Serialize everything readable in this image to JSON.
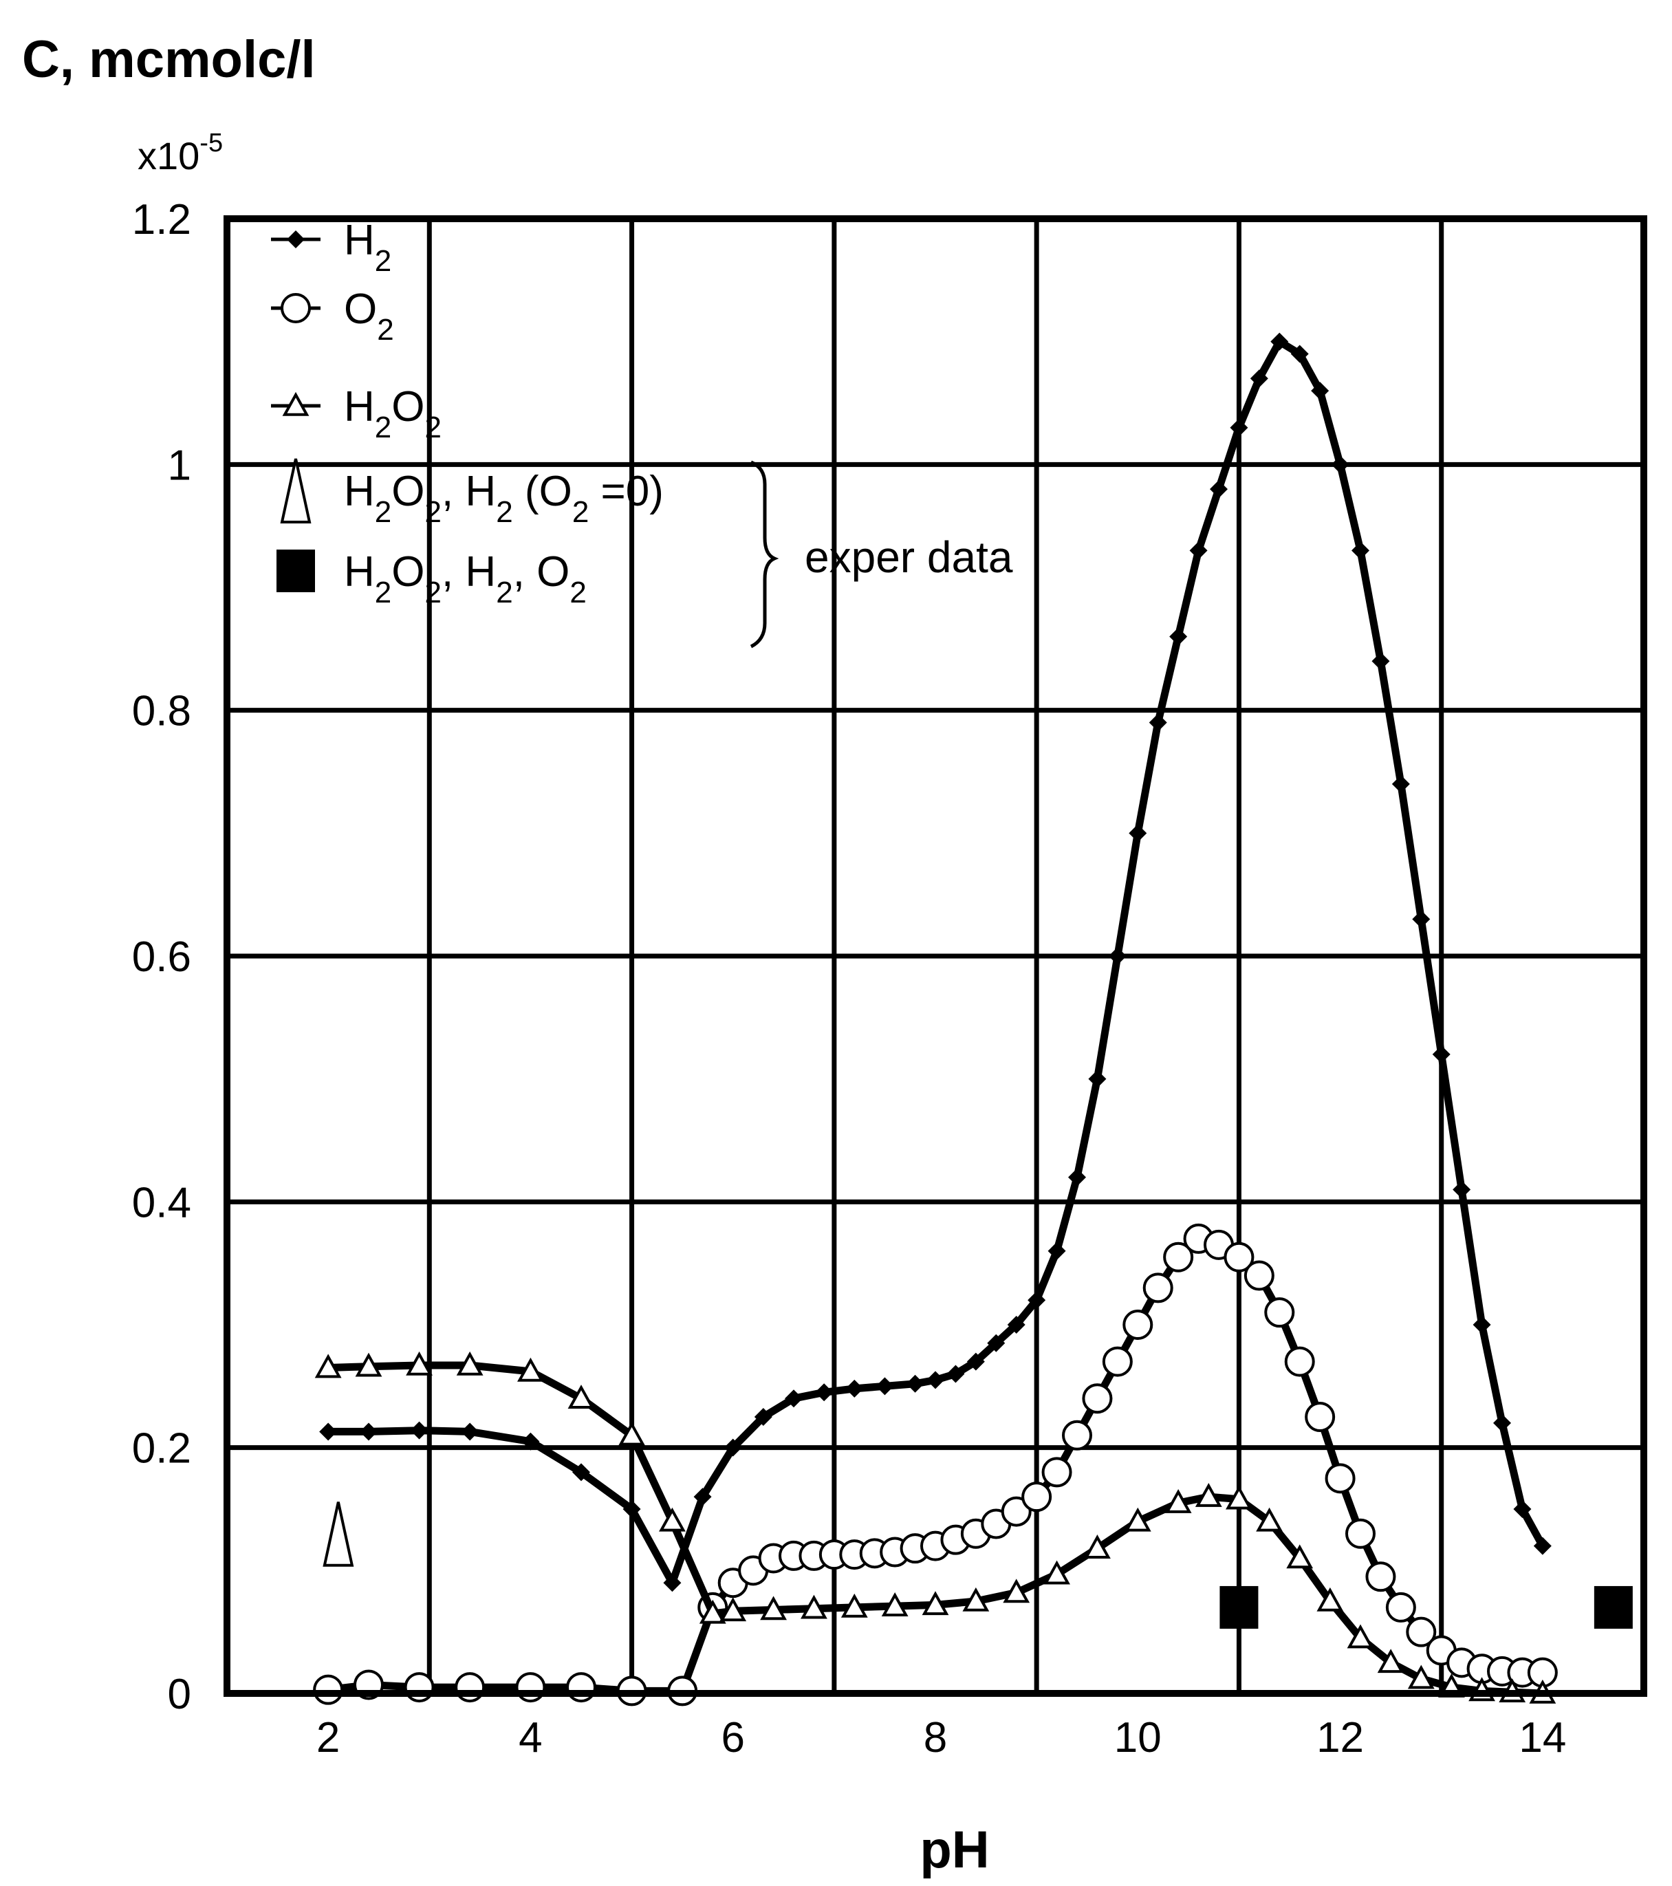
{
  "chart_data": {
    "type": "line",
    "ylabel": "C, mcmolc/l",
    "y_multiplier": "x10",
    "y_multiplier_exp": "-5",
    "xlabel": "pH",
    "xlim": [
      1,
      15
    ],
    "ylim": [
      0,
      1.2
    ],
    "xticks": [
      2,
      4,
      6,
      8,
      10,
      12,
      14
    ],
    "yticks": [
      0,
      0.2,
      0.4,
      0.6,
      0.8,
      1,
      1.2
    ],
    "x_gridlines": [
      3,
      5,
      7,
      9,
      11,
      13
    ],
    "grid": true,
    "legend_position": "top-left",
    "series": [
      {
        "name": "H2",
        "legend": {
          "main": "H",
          "sub": "2"
        },
        "marker": "diamond",
        "x": [
          2.0,
          2.4,
          2.9,
          3.4,
          4.0,
          4.5,
          5.0,
          5.4,
          5.7,
          6.0,
          6.3,
          6.6,
          6.9,
          7.2,
          7.5,
          7.8,
          8.0,
          8.2,
          8.4,
          8.6,
          8.8,
          9.0,
          9.2,
          9.4,
          9.6,
          9.8,
          10.0,
          10.2,
          10.4,
          10.6,
          10.8,
          11.0,
          11.2,
          11.4,
          11.6,
          11.8,
          12.0,
          12.2,
          12.4,
          12.6,
          12.8,
          13.0,
          13.2,
          13.4,
          13.6,
          13.8,
          14.0
        ],
        "y": [
          0.213,
          0.213,
          0.214,
          0.213,
          0.205,
          0.18,
          0.15,
          0.09,
          0.16,
          0.2,
          0.225,
          0.24,
          0.245,
          0.248,
          0.25,
          0.252,
          0.255,
          0.26,
          0.27,
          0.285,
          0.3,
          0.32,
          0.36,
          0.42,
          0.5,
          0.6,
          0.7,
          0.79,
          0.86,
          0.93,
          0.98,
          1.03,
          1.07,
          1.1,
          1.09,
          1.06,
          1.0,
          0.93,
          0.84,
          0.74,
          0.63,
          0.52,
          0.41,
          0.3,
          0.22,
          0.15,
          0.12
        ]
      },
      {
        "name": "O2",
        "legend": {
          "main": "O",
          "sub": "2"
        },
        "marker": "circle",
        "x": [
          2.0,
          2.4,
          2.9,
          3.4,
          4.0,
          4.5,
          5.0,
          5.5,
          5.8,
          6.0,
          6.2,
          6.4,
          6.6,
          6.8,
          7.0,
          7.2,
          7.4,
          7.6,
          7.8,
          8.0,
          8.2,
          8.4,
          8.6,
          8.8,
          9.0,
          9.2,
          9.4,
          9.6,
          9.8,
          10.0,
          10.2,
          10.4,
          10.6,
          10.8,
          11.0,
          11.2,
          11.4,
          11.6,
          11.8,
          12.0,
          12.2,
          12.4,
          12.6,
          12.8,
          13.0,
          13.2,
          13.4,
          13.6,
          13.8,
          14.0
        ],
        "y": [
          0.003,
          0.007,
          0.005,
          0.005,
          0.005,
          0.005,
          0.002,
          0.002,
          0.07,
          0.09,
          0.1,
          0.11,
          0.112,
          0.112,
          0.113,
          0.113,
          0.114,
          0.115,
          0.118,
          0.12,
          0.125,
          0.13,
          0.138,
          0.148,
          0.16,
          0.18,
          0.21,
          0.24,
          0.27,
          0.3,
          0.33,
          0.355,
          0.37,
          0.365,
          0.355,
          0.34,
          0.31,
          0.27,
          0.225,
          0.175,
          0.13,
          0.095,
          0.07,
          0.05,
          0.035,
          0.025,
          0.02,
          0.018,
          0.017,
          0.017
        ]
      },
      {
        "name": "H2O2",
        "legend": {
          "main": "H",
          "sub": "2",
          "main2": "O",
          "sub2": "2"
        },
        "marker": "triangle",
        "x": [
          2.0,
          2.4,
          2.9,
          3.4,
          4.0,
          4.5,
          5.0,
          5.4,
          5.8,
          6.0,
          6.4,
          6.8,
          7.2,
          7.6,
          8.0,
          8.4,
          8.8,
          9.2,
          9.6,
          10.0,
          10.4,
          10.7,
          11.0,
          11.3,
          11.6,
          11.9,
          12.2,
          12.5,
          12.8,
          13.1,
          13.4,
          13.7,
          14.0
        ],
        "y": [
          0.265,
          0.266,
          0.267,
          0.267,
          0.262,
          0.24,
          0.21,
          0.14,
          0.065,
          0.067,
          0.068,
          0.069,
          0.07,
          0.071,
          0.072,
          0.075,
          0.082,
          0.097,
          0.118,
          0.14,
          0.155,
          0.16,
          0.158,
          0.14,
          0.11,
          0.075,
          0.045,
          0.025,
          0.012,
          0.005,
          0.002,
          0.001,
          0.0
        ]
      },
      {
        "name": "H2O2, H2 (O2=0)",
        "marker": "open-triangle-large",
        "group": "exper data",
        "x": [
          2.1
        ],
        "y": [
          0.13
        ]
      },
      {
        "name": "H2O2, H2, O2",
        "marker": "filled-square",
        "group": "exper data",
        "x": [
          11.0,
          14.7
        ],
        "y": [
          0.07,
          0.07
        ]
      }
    ],
    "legend_items": [
      {
        "series": "H2",
        "parts": [
          {
            "t": "H"
          },
          {
            "t": "2",
            "sub": true
          }
        ]
      },
      {
        "series": "O2",
        "parts": [
          {
            "t": "O"
          },
          {
            "t": "2",
            "sub": true
          }
        ]
      },
      {
        "series": "H2O2",
        "parts": [
          {
            "t": "H"
          },
          {
            "t": "2",
            "sub": true
          },
          {
            "t": "O"
          },
          {
            "t": "2",
            "sub": true
          }
        ]
      },
      {
        "series": "H2O2, H2 (O2=0)",
        "parts": [
          {
            "t": "H"
          },
          {
            "t": "2",
            "sub": true
          },
          {
            "t": "O"
          },
          {
            "t": "2",
            "sub": true
          },
          {
            "t": ", H"
          },
          {
            "t": "2",
            "sub": true
          },
          {
            "t": "  (O"
          },
          {
            "t": "2",
            "sub": true
          },
          {
            "t": " =0)"
          }
        ]
      },
      {
        "series": "H2O2, H2, O2",
        "parts": [
          {
            "t": "H"
          },
          {
            "t": "2",
            "sub": true
          },
          {
            "t": "O"
          },
          {
            "t": "2",
            "sub": true
          },
          {
            "t": ", H"
          },
          {
            "t": "2",
            "sub": true
          },
          {
            "t": ", O"
          },
          {
            "t": "2",
            "sub": true
          }
        ]
      }
    ],
    "annotation": "exper data"
  }
}
